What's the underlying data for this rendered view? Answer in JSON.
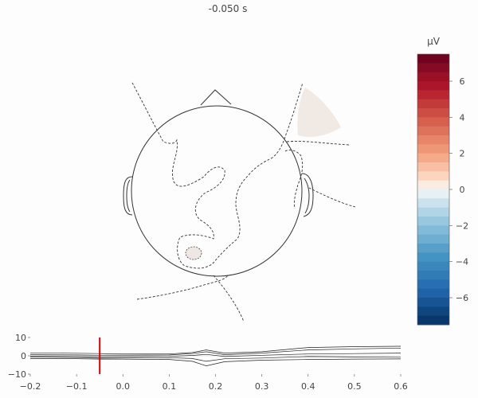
{
  "chart_data": [
    {
      "type": "topomap",
      "title": "-0.050 s",
      "time_s": -0.05,
      "contour_levels_uV": [
        -6,
        -4,
        -2,
        0,
        2,
        4,
        6
      ]
    },
    {
      "type": "colorbar",
      "unit": "µV",
      "range": [
        -7.5,
        7.5
      ],
      "ticks": [
        6,
        4,
        2,
        0,
        -2,
        -4,
        -6
      ],
      "tick_labels": [
        "6",
        "4",
        "2",
        "0",
        "−2",
        "−4",
        "−6"
      ],
      "colormap": "RdBu_r",
      "stops": [
        {
          "v": -7.5,
          "c": "#053061"
        },
        {
          "v": -5.625,
          "c": "#2166ac"
        },
        {
          "v": -3.75,
          "c": "#4393c3"
        },
        {
          "v": -1.875,
          "c": "#92c5de"
        },
        {
          "v": -0.6,
          "c": "#d1e5f0"
        },
        {
          "v": 0,
          "c": "#f7f7f7"
        },
        {
          "v": 0.6,
          "c": "#fddbc7"
        },
        {
          "v": 1.875,
          "c": "#f4a582"
        },
        {
          "v": 3.75,
          "c": "#d6604d"
        },
        {
          "v": 5.625,
          "c": "#b2182b"
        },
        {
          "v": 7.5,
          "c": "#67001f"
        }
      ],
      "n_bands": 30
    },
    {
      "type": "line",
      "x_range": [
        -0.2,
        0.6
      ],
      "y_range": [
        -10,
        10
      ],
      "xticks": [
        -0.2,
        -0.1,
        0.0,
        0.1,
        0.2,
        0.3,
        0.4,
        0.5,
        0.6
      ],
      "xtick_labels": [
        "−0.2",
        "−0.1",
        "0.0",
        "0.1",
        "0.2",
        "0.3",
        "0.4",
        "0.5",
        "0.6"
      ],
      "yticks": [
        10,
        0,
        -10
      ],
      "ytick_labels": [
        "10",
        "0",
        "−10"
      ],
      "time_marker_s": -0.05,
      "marker_color": "#dd0000",
      "series": [
        {
          "x": [
            -0.2,
            -0.1,
            -0.05,
            0.0,
            0.1,
            0.15,
            0.18,
            0.22,
            0.3,
            0.4,
            0.5,
            0.6
          ],
          "values": [
            1.6,
            1.4,
            1.2,
            1.0,
            1.0,
            1.8,
            3.2,
            1.5,
            2.2,
            4.5,
            5.0,
            5.2
          ]
        },
        {
          "x": [
            -0.2,
            -0.1,
            -0.05,
            0.0,
            0.1,
            0.15,
            0.18,
            0.22,
            0.3,
            0.4,
            0.5,
            0.6
          ],
          "values": [
            0.6,
            0.5,
            0.3,
            0.4,
            0.5,
            1.2,
            2.2,
            0.6,
            1.5,
            3.2,
            3.8,
            4.2
          ]
        },
        {
          "x": [
            -0.2,
            -0.1,
            -0.05,
            0.0,
            0.1,
            0.15,
            0.18,
            0.22,
            0.3,
            0.4,
            0.5,
            0.6
          ],
          "values": [
            -0.2,
            -0.4,
            -0.6,
            -0.5,
            -0.3,
            0.2,
            0.8,
            -0.4,
            0.3,
            1.0,
            1.2,
            1.5
          ]
        },
        {
          "x": [
            -0.2,
            -0.1,
            -0.05,
            0.0,
            0.1,
            0.15,
            0.18,
            0.22,
            0.3,
            0.4,
            0.5,
            0.6
          ],
          "values": [
            -0.8,
            -1.0,
            -1.3,
            -1.2,
            -1.0,
            -1.5,
            -3.0,
            -1.6,
            -1.2,
            -0.4,
            -0.6,
            -0.8
          ]
        },
        {
          "x": [
            -0.2,
            -0.1,
            -0.05,
            0.0,
            0.1,
            0.15,
            0.18,
            0.22,
            0.3,
            0.4,
            0.5,
            0.6
          ],
          "values": [
            -1.5,
            -1.6,
            -1.8,
            -1.8,
            -2.0,
            -3.0,
            -5.5,
            -3.2,
            -2.4,
            -2.0,
            -1.8,
            -1.7
          ]
        }
      ]
    }
  ]
}
